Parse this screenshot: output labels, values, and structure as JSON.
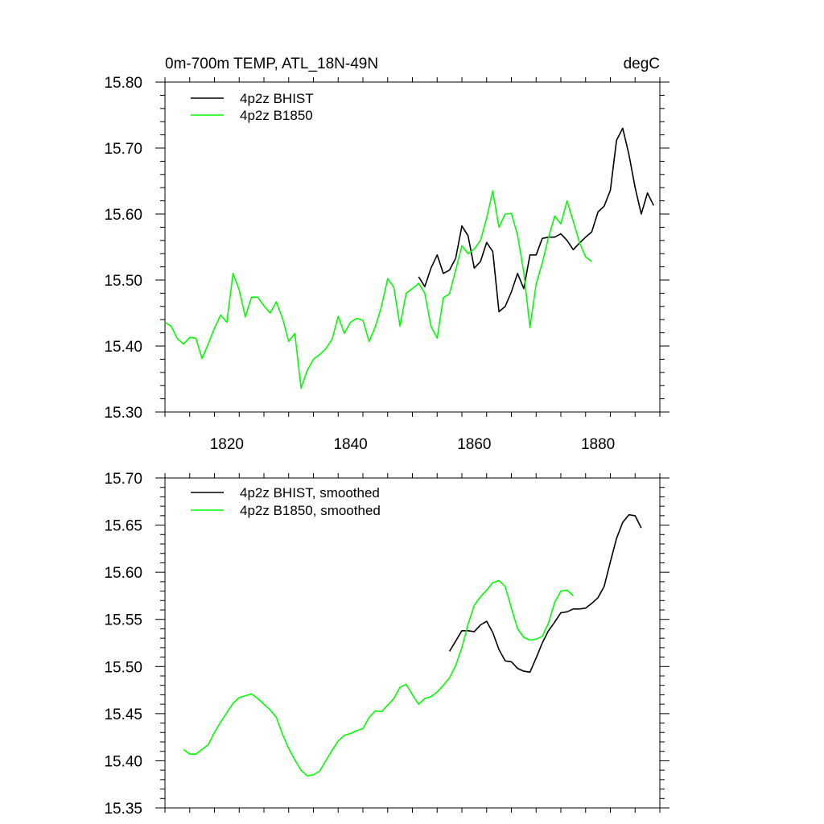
{
  "chart_data": [
    {
      "type": "line",
      "title": "0m-700m TEMP, ATL_18N-49N",
      "units": "degC",
      "xlabel": "",
      "ylabel": "",
      "xlim": [
        1810,
        1890
      ],
      "ylim": [
        15.3,
        15.8
      ],
      "x_ticks": [
        1820,
        1840,
        1860,
        1880
      ],
      "x_tick_labels": [
        "1820",
        "1840",
        "1860",
        "1880"
      ],
      "y_ticks": [
        15.3,
        15.4,
        15.5,
        15.6,
        15.7,
        15.8
      ],
      "y_tick_labels": [
        "15.30",
        "15.40",
        "15.50",
        "15.60",
        "15.70",
        "15.80"
      ],
      "legend": "top-left",
      "series": [
        {
          "name": "4p2z BHIST",
          "color": "#000000",
          "x": [
            1851,
            1852,
            1853,
            1854,
            1855,
            1856,
            1857,
            1858,
            1859,
            1860,
            1861,
            1862,
            1863,
            1864,
            1865,
            1866,
            1867,
            1868,
            1869,
            1870,
            1871,
            1872,
            1873,
            1874,
            1875,
            1876,
            1877,
            1878,
            1879,
            1880,
            1881,
            1882,
            1883,
            1884,
            1885,
            1886,
            1887,
            1888,
            1889
          ],
          "values": [
            15.505,
            15.49,
            15.518,
            15.538,
            15.51,
            15.515,
            15.533,
            15.582,
            15.567,
            15.518,
            15.528,
            15.557,
            15.543,
            15.452,
            15.46,
            15.482,
            15.51,
            15.487,
            15.538,
            15.538,
            15.563,
            15.565,
            15.565,
            15.57,
            15.56,
            15.546,
            15.556,
            15.565,
            15.573,
            15.603,
            15.612,
            15.636,
            15.712,
            15.73,
            15.69,
            15.64,
            15.6,
            15.632,
            15.613
          ]
        },
        {
          "name": "4p2z B1850",
          "color": "#00ff00",
          "x": [
            1810,
            1811,
            1812,
            1813,
            1814,
            1815,
            1816,
            1817,
            1818,
            1819,
            1820,
            1821,
            1822,
            1823,
            1824,
            1825,
            1826,
            1827,
            1828,
            1829,
            1830,
            1831,
            1832,
            1833,
            1834,
            1835,
            1836,
            1837,
            1838,
            1839,
            1840,
            1841,
            1842,
            1843,
            1844,
            1845,
            1846,
            1847,
            1848,
            1849,
            1850,
            1851,
            1852,
            1853,
            1854,
            1855,
            1856,
            1857,
            1858,
            1859,
            1860,
            1861,
            1862,
            1863,
            1864,
            1865,
            1866,
            1867,
            1868,
            1869,
            1870,
            1871,
            1872,
            1873,
            1874,
            1875,
            1876,
            1877,
            1878,
            1879
          ],
          "values": [
            15.436,
            15.43,
            15.411,
            15.403,
            15.413,
            15.412,
            15.381,
            15.403,
            15.427,
            15.447,
            15.436,
            15.51,
            15.485,
            15.444,
            15.474,
            15.474,
            15.461,
            15.45,
            15.467,
            15.442,
            15.407,
            15.419,
            15.336,
            15.363,
            15.38,
            15.387,
            15.396,
            15.41,
            15.445,
            15.419,
            15.436,
            15.442,
            15.439,
            15.407,
            15.429,
            15.46,
            15.502,
            15.489,
            15.43,
            15.48,
            15.487,
            15.495,
            15.48,
            15.43,
            15.412,
            15.473,
            15.479,
            15.515,
            15.552,
            15.54,
            15.547,
            15.56,
            15.594,
            15.635,
            15.58,
            15.6,
            15.601,
            15.568,
            15.512,
            15.428,
            15.494,
            15.526,
            15.564,
            15.597,
            15.585,
            15.62,
            15.589,
            15.557,
            15.535,
            15.528
          ]
        }
      ]
    },
    {
      "type": "line",
      "title": "",
      "xlabel": "",
      "ylabel": "",
      "xlim": [
        1810,
        1890
      ],
      "ylim": [
        15.35,
        15.7
      ],
      "x_ticks": [
        1820,
        1840,
        1860,
        1880
      ],
      "y_ticks": [
        15.35,
        15.4,
        15.45,
        15.5,
        15.55,
        15.6,
        15.65,
        15.7
      ],
      "y_tick_labels": [
        "15.35",
        "15.40",
        "15.45",
        "15.50",
        "15.55",
        "15.60",
        "15.65",
        "15.70"
      ],
      "legend": "top-left",
      "series": [
        {
          "name": "4p2z BHIST, smoothed",
          "color": "#000000",
          "x": [
            1856,
            1857,
            1858,
            1859,
            1860,
            1861,
            1862,
            1863,
            1864,
            1865,
            1866,
            1867,
            1868,
            1869,
            1870,
            1871,
            1872,
            1873,
            1874,
            1875,
            1876,
            1877,
            1878,
            1879,
            1880,
            1881,
            1882,
            1883,
            1884,
            1885,
            1886,
            1887
          ],
          "values": [
            15.516,
            15.527,
            15.538,
            15.538,
            15.537,
            15.544,
            15.548,
            15.536,
            15.518,
            15.506,
            15.505,
            15.498,
            15.495,
            15.494,
            15.509,
            15.525,
            15.538,
            15.547,
            15.557,
            15.558,
            15.561,
            15.561,
            15.562,
            15.567,
            15.573,
            15.585,
            15.611,
            15.636,
            15.653,
            15.661,
            15.66,
            15.647
          ]
        },
        {
          "name": "4p2z B1850, smoothed",
          "color": "#00ff00",
          "x": [
            1813,
            1814,
            1815,
            1816,
            1817,
            1818,
            1819,
            1820,
            1821,
            1822,
            1823,
            1824,
            1825,
            1826,
            1827,
            1828,
            1829,
            1830,
            1831,
            1832,
            1833,
            1834,
            1835,
            1836,
            1837,
            1838,
            1839,
            1840,
            1841,
            1842,
            1843,
            1844,
            1845,
            1846,
            1847,
            1848,
            1849,
            1850,
            1851,
            1852,
            1853,
            1854,
            1855,
            1856,
            1857,
            1858,
            1859,
            1860,
            1861,
            1862,
            1863,
            1864,
            1865,
            1866,
            1867,
            1868,
            1869,
            1870,
            1871,
            1872,
            1873,
            1874,
            1875,
            1876
          ],
          "values": [
            15.412,
            15.407,
            15.407,
            15.412,
            15.417,
            15.43,
            15.441,
            15.451,
            15.461,
            15.467,
            15.469,
            15.471,
            15.466,
            15.46,
            15.454,
            15.446,
            15.428,
            15.413,
            15.401,
            15.39,
            15.384,
            15.385,
            15.389,
            15.4,
            15.411,
            15.421,
            15.427,
            15.429,
            15.432,
            15.434,
            15.446,
            15.453,
            15.452,
            15.459,
            15.466,
            15.478,
            15.481,
            15.47,
            15.46,
            15.466,
            15.468,
            15.473,
            15.48,
            15.488,
            15.501,
            15.52,
            15.545,
            15.565,
            15.574,
            15.581,
            15.589,
            15.591,
            15.585,
            15.562,
            15.54,
            15.531,
            15.528,
            15.529,
            15.532,
            15.546,
            15.568,
            15.58,
            15.581,
            15.575
          ]
        }
      ]
    }
  ]
}
